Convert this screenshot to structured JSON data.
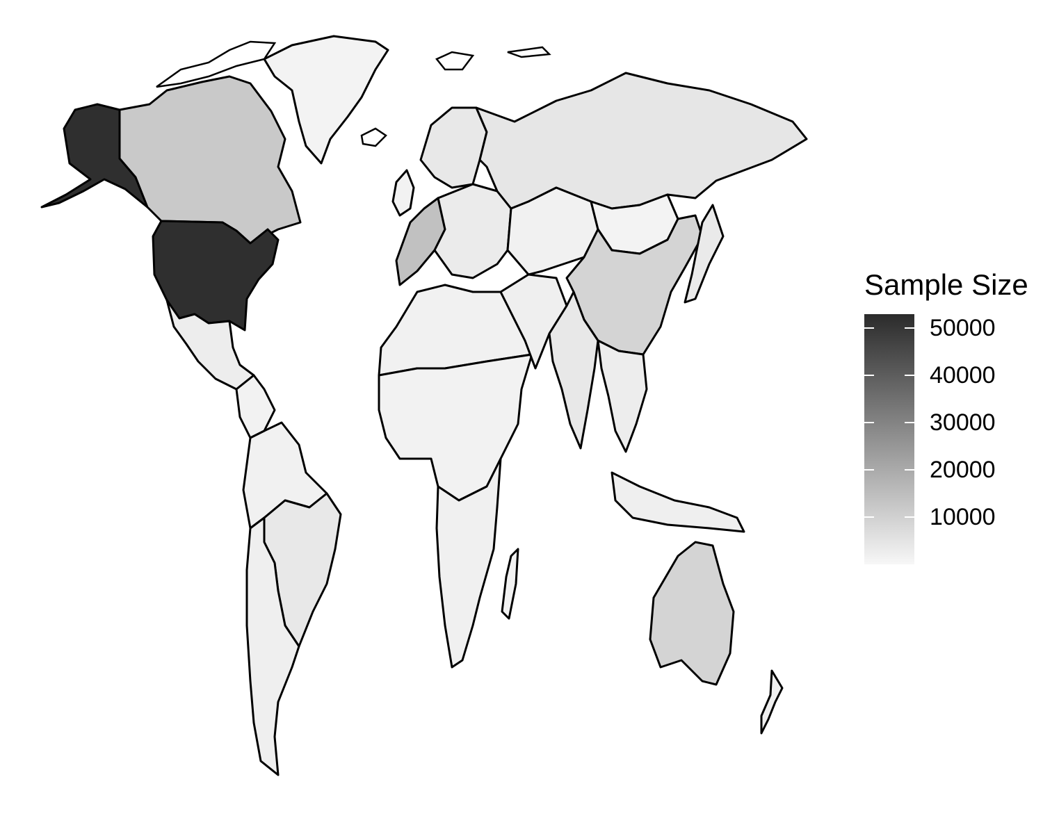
{
  "legend": {
    "title": "Sample Size",
    "min": 0,
    "max": 53000,
    "low_color": "#f7f7f7",
    "high_color": "#2b2b2b",
    "ticks": [
      {
        "value": 50000,
        "label": "50000"
      },
      {
        "value": 40000,
        "label": "40000"
      },
      {
        "value": 30000,
        "label": "30000"
      },
      {
        "value": 20000,
        "label": "20000"
      },
      {
        "value": 10000,
        "label": "10000"
      }
    ]
  },
  "regions": [
    {
      "name": "alaska",
      "value": 52000
    },
    {
      "name": "united-states",
      "value": 52000
    },
    {
      "name": "canada",
      "value": 12000
    },
    {
      "name": "greenland",
      "value": 1000
    },
    {
      "name": "mexico",
      "value": 2500
    },
    {
      "name": "central-america",
      "value": 1200
    },
    {
      "name": "south-america-north",
      "value": 1500
    },
    {
      "name": "brazil",
      "value": 4000
    },
    {
      "name": "south-america-south",
      "value": 2000
    },
    {
      "name": "western-europe",
      "value": 14000
    },
    {
      "name": "northern-europe",
      "value": 4000
    },
    {
      "name": "eastern-europe",
      "value": 3000
    },
    {
      "name": "russia",
      "value": 4500
    },
    {
      "name": "africa-north",
      "value": 1500
    },
    {
      "name": "africa-central",
      "value": 1200
    },
    {
      "name": "africa-south",
      "value": 1800
    },
    {
      "name": "middle-east",
      "value": 2000
    },
    {
      "name": "central-asia",
      "value": 1500
    },
    {
      "name": "mongolia",
      "value": 1000
    },
    {
      "name": "china",
      "value": 9000
    },
    {
      "name": "india",
      "value": 4000
    },
    {
      "name": "southeast-asia",
      "value": 2500
    },
    {
      "name": "japan",
      "value": 3500
    },
    {
      "name": "indonesia",
      "value": 2000
    },
    {
      "name": "australia",
      "value": 9000
    },
    {
      "name": "new-zealand",
      "value": 2000
    }
  ]
}
